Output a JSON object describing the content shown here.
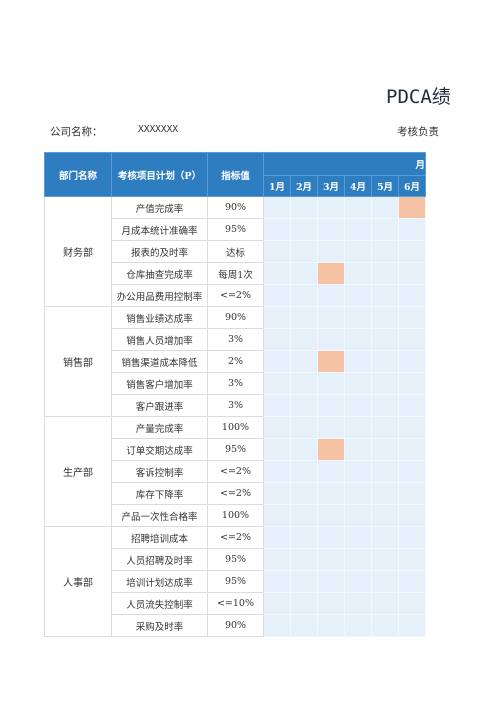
{
  "title": "PDCA绩",
  "meta": {
    "company_label": "公司名称：",
    "company_value": "XXXXXXX",
    "owner_label": "考核负责"
  },
  "table": {
    "headers": {
      "dept": "部门名称",
      "plan": "考核项目计划（P）",
      "target": "指标值",
      "month_group": "月",
      "months": [
        "1月",
        "2月",
        "3月",
        "4月",
        "5月",
        "6月"
      ]
    },
    "departments": [
      {
        "name": "财务部",
        "rows": [
          {
            "item": "产值完成率",
            "target": "90%",
            "highlight": [
              6
            ]
          },
          {
            "item": "月成本统计准确率",
            "target": "95%",
            "highlight": []
          },
          {
            "item": "报表的及时率",
            "target": "达标",
            "highlight": []
          },
          {
            "item": "仓库抽查完成率",
            "target": "每周1次",
            "highlight": [
              3
            ]
          },
          {
            "item": "办公用品费用控制率",
            "target": "<=2%",
            "highlight": []
          }
        ]
      },
      {
        "name": "销售部",
        "rows": [
          {
            "item": "销售业绩达成率",
            "target": "90%",
            "highlight": []
          },
          {
            "item": "销售人员增加率",
            "target": "3%",
            "highlight": []
          },
          {
            "item": "销售渠道成本降低",
            "target": "2%",
            "highlight": [
              3
            ]
          },
          {
            "item": "销售客户增加率",
            "target": "3%",
            "highlight": []
          },
          {
            "item": "客户跟进率",
            "target": "3%",
            "highlight": []
          }
        ]
      },
      {
        "name": "生产部",
        "rows": [
          {
            "item": "产量完成率",
            "target": "100%",
            "highlight": []
          },
          {
            "item": "订单交期达成率",
            "target": "95%",
            "highlight": [
              3
            ]
          },
          {
            "item": "客诉控制率",
            "target": "<=2%",
            "highlight": []
          },
          {
            "item": "库存下降率",
            "target": "<=2%",
            "highlight": []
          },
          {
            "item": "产品一次性合格率",
            "target": "100%",
            "highlight": []
          }
        ]
      },
      {
        "name": "人事部",
        "rows": [
          {
            "item": "招聘培训成本",
            "target": "<=2%",
            "highlight": []
          },
          {
            "item": "人员招聘及时率",
            "target": "95%",
            "highlight": []
          },
          {
            "item": "培训计划达成率",
            "target": "95%",
            "highlight": []
          },
          {
            "item": "人员流失控制率",
            "target": "<=10%",
            "highlight": []
          },
          {
            "item": "采购及时率",
            "target": "90%",
            "highlight": []
          }
        ]
      }
    ]
  }
}
